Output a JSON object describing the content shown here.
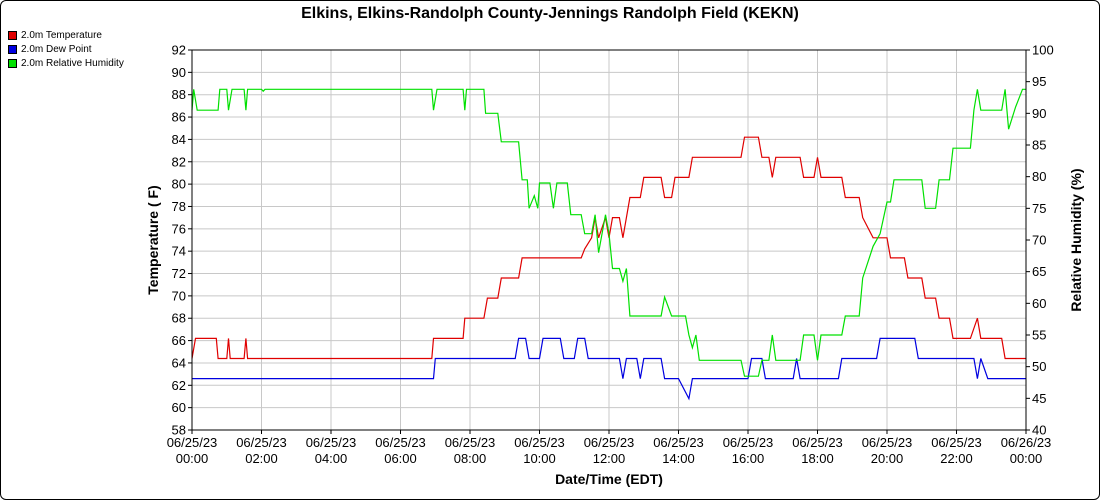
{
  "chart_data": {
    "type": "line",
    "title": "Elkins, Elkins-Randolph County-Jennings Randolph Field (KEKN)",
    "xlabel": "Date/Time (EDT)",
    "ylabel_left": "Temperature ( F)",
    "ylabel_right": "Relative Humidity (%)",
    "ylim_left": [
      58,
      92
    ],
    "ylim_right": [
      40,
      100
    ],
    "yticks_left": [
      58,
      60,
      62,
      64,
      66,
      68,
      70,
      72,
      74,
      76,
      78,
      80,
      82,
      84,
      86,
      88,
      90,
      92
    ],
    "yticks_right": [
      40,
      45,
      50,
      55,
      60,
      65,
      70,
      75,
      80,
      85,
      90,
      95,
      100
    ],
    "xlim": [
      0,
      24
    ],
    "xticks": [
      {
        "date": "06/25/23",
        "time": "00:00"
      },
      {
        "date": "06/25/23",
        "time": "02:00"
      },
      {
        "date": "06/25/23",
        "time": "04:00"
      },
      {
        "date": "06/25/23",
        "time": "06:00"
      },
      {
        "date": "06/25/23",
        "time": "08:00"
      },
      {
        "date": "06/25/23",
        "time": "10:00"
      },
      {
        "date": "06/25/23",
        "time": "12:00"
      },
      {
        "date": "06/25/23",
        "time": "14:00"
      },
      {
        "date": "06/25/23",
        "time": "16:00"
      },
      {
        "date": "06/25/23",
        "time": "18:00"
      },
      {
        "date": "06/25/23",
        "time": "20:00"
      },
      {
        "date": "06/25/23",
        "time": "22:00"
      },
      {
        "date": "06/26/23",
        "time": "00:00"
      }
    ],
    "grid": true,
    "legend_position": "top-left outside",
    "x_units": "hours",
    "series": [
      {
        "name": "2.0m Temperature",
        "color": "#e00000",
        "axis": "left",
        "points": [
          [
            0.0,
            64.4
          ],
          [
            0.1,
            66.2
          ],
          [
            0.7,
            66.2
          ],
          [
            0.75,
            64.4
          ],
          [
            1.0,
            64.4
          ],
          [
            1.05,
            66.2
          ],
          [
            1.1,
            64.4
          ],
          [
            1.5,
            64.4
          ],
          [
            1.55,
            66.2
          ],
          [
            1.6,
            64.4
          ],
          [
            6.9,
            64.4
          ],
          [
            6.95,
            66.2
          ],
          [
            7.8,
            66.2
          ],
          [
            7.85,
            68.0
          ],
          [
            8.4,
            68.0
          ],
          [
            8.5,
            69.8
          ],
          [
            8.8,
            69.8
          ],
          [
            8.9,
            71.6
          ],
          [
            9.4,
            71.6
          ],
          [
            9.5,
            73.4
          ],
          [
            10.0,
            73.4
          ],
          [
            10.1,
            73.4
          ],
          [
            11.2,
            73.4
          ],
          [
            11.3,
            74.2
          ],
          [
            11.5,
            75.2
          ],
          [
            11.6,
            77.0
          ],
          [
            11.7,
            75.2
          ],
          [
            11.9,
            77.0
          ],
          [
            12.0,
            75.2
          ],
          [
            12.1,
            77.0
          ],
          [
            12.3,
            77.0
          ],
          [
            12.4,
            75.2
          ],
          [
            12.5,
            77.0
          ],
          [
            12.6,
            78.8
          ],
          [
            12.9,
            78.8
          ],
          [
            13.0,
            80.6
          ],
          [
            13.5,
            80.6
          ],
          [
            13.6,
            78.8
          ],
          [
            13.8,
            78.8
          ],
          [
            13.9,
            80.6
          ],
          [
            14.3,
            80.6
          ],
          [
            14.4,
            82.4
          ],
          [
            15.2,
            82.4
          ],
          [
            15.3,
            82.4
          ],
          [
            15.8,
            82.4
          ],
          [
            15.9,
            84.2
          ],
          [
            16.3,
            84.2
          ],
          [
            16.4,
            82.4
          ],
          [
            16.6,
            82.4
          ],
          [
            16.7,
            80.6
          ],
          [
            16.8,
            82.4
          ],
          [
            17.5,
            82.4
          ],
          [
            17.6,
            80.6
          ],
          [
            17.9,
            80.6
          ],
          [
            18.0,
            82.4
          ],
          [
            18.1,
            80.6
          ],
          [
            18.7,
            80.6
          ],
          [
            18.8,
            78.8
          ],
          [
            19.2,
            78.8
          ],
          [
            19.3,
            77.0
          ],
          [
            19.6,
            75.2
          ],
          [
            19.8,
            75.2
          ],
          [
            20.0,
            75.2
          ],
          [
            20.1,
            73.4
          ],
          [
            20.5,
            73.4
          ],
          [
            20.6,
            71.6
          ],
          [
            21.0,
            71.6
          ],
          [
            21.1,
            69.8
          ],
          [
            21.4,
            69.8
          ],
          [
            21.5,
            68.0
          ],
          [
            21.8,
            68.0
          ],
          [
            21.9,
            66.2
          ],
          [
            22.4,
            66.2
          ],
          [
            22.6,
            68.0
          ],
          [
            22.7,
            66.2
          ],
          [
            23.3,
            66.2
          ],
          [
            23.4,
            64.4
          ],
          [
            24.0,
            64.4
          ]
        ]
      },
      {
        "name": "2.0m Dew Point",
        "color": "#0000e0",
        "axis": "left",
        "points": [
          [
            0.0,
            62.6
          ],
          [
            0.1,
            62.6
          ],
          [
            6.9,
            62.6
          ],
          [
            6.95,
            62.6
          ],
          [
            7.0,
            64.4
          ],
          [
            9.0,
            64.4
          ],
          [
            9.1,
            64.4
          ],
          [
            9.3,
            64.4
          ],
          [
            9.4,
            66.2
          ],
          [
            9.6,
            66.2
          ],
          [
            9.7,
            64.4
          ],
          [
            10.0,
            64.4
          ],
          [
            10.1,
            66.2
          ],
          [
            10.6,
            66.2
          ],
          [
            10.7,
            64.4
          ],
          [
            11.0,
            64.4
          ],
          [
            11.1,
            66.2
          ],
          [
            11.3,
            66.2
          ],
          [
            11.4,
            64.4
          ],
          [
            12.0,
            64.4
          ],
          [
            12.1,
            64.4
          ],
          [
            12.3,
            64.4
          ],
          [
            12.4,
            62.6
          ],
          [
            12.5,
            64.4
          ],
          [
            12.8,
            64.4
          ],
          [
            12.9,
            62.6
          ],
          [
            13.0,
            64.4
          ],
          [
            13.5,
            64.4
          ],
          [
            13.6,
            62.6
          ],
          [
            14.0,
            62.6
          ],
          [
            14.3,
            60.8
          ],
          [
            14.4,
            62.6
          ],
          [
            15.0,
            62.6
          ],
          [
            15.1,
            62.6
          ],
          [
            16.0,
            62.6
          ],
          [
            16.1,
            64.4
          ],
          [
            16.4,
            64.4
          ],
          [
            16.5,
            62.6
          ],
          [
            17.3,
            62.6
          ],
          [
            17.4,
            64.4
          ],
          [
            17.5,
            62.6
          ],
          [
            18.6,
            62.6
          ],
          [
            18.7,
            64.4
          ],
          [
            19.7,
            64.4
          ],
          [
            19.8,
            66.2
          ],
          [
            20.3,
            66.2
          ],
          [
            20.4,
            66.2
          ],
          [
            20.8,
            66.2
          ],
          [
            20.9,
            64.4
          ],
          [
            22.5,
            64.4
          ],
          [
            22.6,
            62.6
          ],
          [
            22.7,
            64.4
          ],
          [
            22.9,
            62.6
          ],
          [
            23.5,
            62.6
          ],
          [
            23.7,
            62.6
          ],
          [
            24.0,
            62.6
          ]
        ]
      },
      {
        "name": "2.0m Relative Humidity",
        "color": "#00e000",
        "axis": "right",
        "points": [
          [
            0.0,
            90.5
          ],
          [
            0.05,
            93.8
          ],
          [
            0.15,
            90.5
          ],
          [
            0.75,
            90.5
          ],
          [
            0.8,
            93.8
          ],
          [
            1.0,
            93.8
          ],
          [
            1.05,
            90.5
          ],
          [
            1.15,
            93.8
          ],
          [
            1.5,
            93.8
          ],
          [
            1.55,
            90.5
          ],
          [
            1.6,
            93.8
          ],
          [
            2.0,
            93.8
          ],
          [
            2.05,
            93.5
          ],
          [
            2.1,
            93.8
          ],
          [
            6.9,
            93.8
          ],
          [
            6.95,
            90.5
          ],
          [
            7.05,
            93.8
          ],
          [
            7.8,
            93.8
          ],
          [
            7.85,
            90.5
          ],
          [
            7.9,
            93.8
          ],
          [
            8.4,
            93.8
          ],
          [
            8.45,
            90.0
          ],
          [
            8.8,
            90.0
          ],
          [
            8.9,
            85.5
          ],
          [
            9.4,
            85.5
          ],
          [
            9.5,
            79.5
          ],
          [
            9.65,
            79.5
          ],
          [
            9.7,
            75.0
          ],
          [
            9.85,
            77.0
          ],
          [
            9.95,
            75.0
          ],
          [
            10.0,
            79.0
          ],
          [
            10.3,
            79.0
          ],
          [
            10.4,
            75.0
          ],
          [
            10.5,
            79.0
          ],
          [
            10.8,
            79.0
          ],
          [
            10.9,
            74.0
          ],
          [
            11.2,
            74.0
          ],
          [
            11.3,
            71.0
          ],
          [
            11.5,
            71.0
          ],
          [
            11.6,
            74.0
          ],
          [
            11.7,
            68.0
          ],
          [
            11.9,
            74.0
          ],
          [
            12.0,
            71.0
          ],
          [
            12.1,
            65.5
          ],
          [
            12.3,
            65.5
          ],
          [
            12.4,
            63.5
          ],
          [
            12.5,
            65.5
          ],
          [
            12.6,
            58.0
          ],
          [
            12.9,
            58.0
          ],
          [
            13.0,
            58.0
          ],
          [
            13.5,
            58.0
          ],
          [
            13.6,
            61.0
          ],
          [
            13.8,
            58.0
          ],
          [
            14.2,
            58.0
          ],
          [
            14.3,
            55.0
          ],
          [
            14.4,
            53.0
          ],
          [
            14.5,
            55.0
          ],
          [
            14.6,
            51.0
          ],
          [
            15.3,
            51.0
          ],
          [
            15.4,
            51.0
          ],
          [
            15.8,
            51.0
          ],
          [
            15.9,
            48.5
          ],
          [
            16.3,
            48.5
          ],
          [
            16.4,
            51.0
          ],
          [
            16.6,
            51.0
          ],
          [
            16.7,
            55.0
          ],
          [
            16.8,
            51.0
          ],
          [
            17.5,
            51.0
          ],
          [
            17.6,
            55.0
          ],
          [
            17.9,
            55.0
          ],
          [
            18.0,
            51.0
          ],
          [
            18.1,
            55.0
          ],
          [
            18.7,
            55.0
          ],
          [
            18.8,
            58.0
          ],
          [
            19.2,
            58.0
          ],
          [
            19.3,
            64.0
          ],
          [
            19.6,
            69.0
          ],
          [
            19.8,
            71.0
          ],
          [
            20.0,
            76.0
          ],
          [
            20.1,
            76.0
          ],
          [
            20.2,
            79.5
          ],
          [
            20.5,
            79.5
          ],
          [
            20.6,
            79.5
          ],
          [
            21.0,
            79.5
          ],
          [
            21.1,
            75.0
          ],
          [
            21.4,
            75.0
          ],
          [
            21.5,
            79.5
          ],
          [
            21.8,
            79.5
          ],
          [
            21.9,
            84.5
          ],
          [
            22.4,
            84.5
          ],
          [
            22.5,
            90.5
          ],
          [
            22.6,
            93.8
          ],
          [
            22.7,
            90.5
          ],
          [
            23.3,
            90.5
          ],
          [
            23.4,
            93.8
          ],
          [
            23.5,
            87.5
          ],
          [
            23.7,
            91.0
          ],
          [
            23.9,
            93.8
          ],
          [
            24.0,
            93.8
          ]
        ]
      }
    ]
  }
}
